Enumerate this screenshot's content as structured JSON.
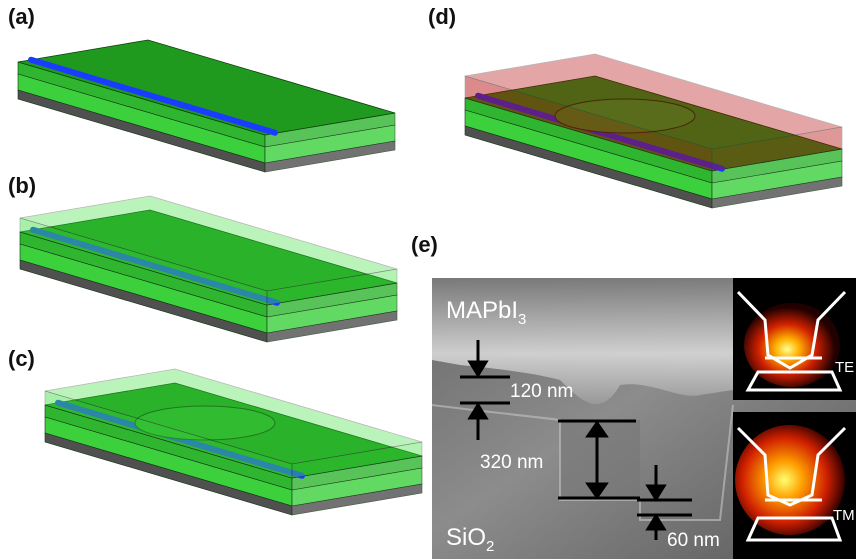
{
  "panel_labels": [
    "(a)",
    "(b)",
    "(c)",
    "(d)",
    "(e)"
  ],
  "sem": {
    "material_top": {
      "text": "MAPbI",
      "sub": "3"
    },
    "substrate": {
      "text": "SiO",
      "sub": "2"
    },
    "dimensions": [
      "120 nm",
      "320 nm",
      "60 nm"
    ],
    "modes": [
      "TE",
      "TM"
    ]
  }
}
